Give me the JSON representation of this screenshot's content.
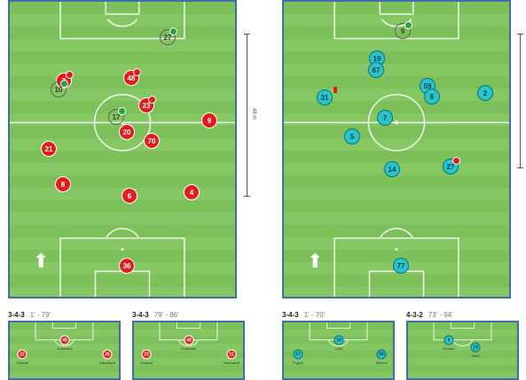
{
  "distance_label": "48 m",
  "left_pitch": {
    "players": [
      {
        "num": "27",
        "style": "ghost",
        "sub": "in"
      },
      {
        "num": "48",
        "style": "red",
        "sub": "out"
      },
      {
        "num": "3",
        "style": "red",
        "sub": "out"
      },
      {
        "num": "10",
        "style": "ghost",
        "sub": "in"
      },
      {
        "num": "23",
        "style": "red",
        "sub": "out"
      },
      {
        "num": "17",
        "style": "ghost",
        "sub": "in"
      },
      {
        "num": "20",
        "style": "red",
        "sub": ""
      },
      {
        "num": "70",
        "style": "red",
        "sub": ""
      },
      {
        "num": "9",
        "style": "red",
        "sub": ""
      },
      {
        "num": "21",
        "style": "red",
        "sub": ""
      },
      {
        "num": "8",
        "style": "red",
        "sub": ""
      },
      {
        "num": "6",
        "style": "red",
        "sub": ""
      },
      {
        "num": "4",
        "style": "red",
        "sub": ""
      },
      {
        "num": "36",
        "style": "red",
        "sub": ""
      }
    ]
  },
  "right_pitch": {
    "players": [
      {
        "num": "9",
        "style": "ghost",
        "sub": "in"
      },
      {
        "num": "19",
        "style": "teal",
        "sub": ""
      },
      {
        "num": "67",
        "style": "teal",
        "sub": ""
      },
      {
        "num": "31",
        "style": "teal",
        "sub": "card"
      },
      {
        "num": "59",
        "style": "teal",
        "sub": ""
      },
      {
        "num": "6",
        "style": "teal",
        "sub": ""
      },
      {
        "num": "2",
        "style": "teal",
        "sub": ""
      },
      {
        "num": "7",
        "style": "teal",
        "sub": ""
      },
      {
        "num": "5",
        "style": "teal",
        "sub": ""
      },
      {
        "num": "14",
        "style": "teal",
        "sub": ""
      },
      {
        "num": "27",
        "style": "teal",
        "sub": "out"
      },
      {
        "num": "77",
        "style": "teal",
        "sub": ""
      }
    ]
  },
  "formations": [
    {
      "formation": "3-4-3",
      "time": "1' - 79'"
    },
    {
      "formation": "3-4-3",
      "time": "79' - 86'"
    },
    {
      "formation": "3-4-3",
      "time": "1' - 70'"
    },
    {
      "formation": "4-3-2",
      "time": "73' - 94'"
    }
  ],
  "mini_pitches": [
    {
      "players": [
        {
          "num": "22",
          "style": "red",
          "name": "Ghilardi"
        },
        {
          "num": "48",
          "style": "red",
          "name": "Kullander"
        },
        {
          "num": "35",
          "style": "red",
          "name": "Barnhardt"
        }
      ]
    },
    {
      "players": [
        {
          "num": "23",
          "style": "red",
          "name": "Ghilardi"
        },
        {
          "num": "48",
          "style": "red",
          "name": "Kullander"
        },
        {
          "num": "21",
          "style": "red",
          "name": "Barnhardt"
        }
      ]
    },
    {
      "players": [
        {
          "num": "67",
          "style": "teal",
          "name": "Puglisi"
        },
        {
          "num": "19",
          "style": "teal",
          "name": "Lindt"
        },
        {
          "num": "59",
          "style": "teal",
          "name": "Airibius"
        }
      ]
    },
    {
      "players": [
        {
          "num": "9",
          "style": "teal",
          "name": "Simmer"
        },
        {
          "num": "19",
          "style": "teal",
          "name": "Blob"
        }
      ]
    }
  ]
}
